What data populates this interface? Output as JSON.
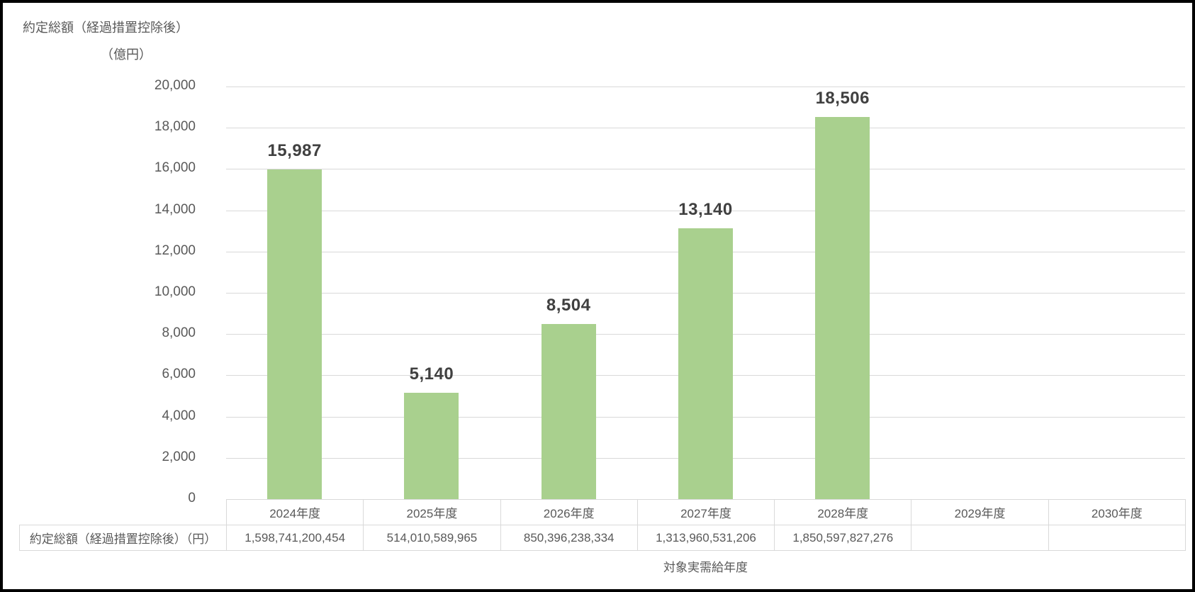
{
  "frame": {
    "border_color": "#000000",
    "background": "#FFFFFF"
  },
  "title": {
    "line1": "約定総額（経過措置控除後）",
    "line2": "（億円）"
  },
  "chart_data": {
    "type": "bar",
    "title": "約定総額（経過措置控除後）（億円）",
    "categories": [
      "2024年度",
      "2025年度",
      "2026年度",
      "2027年度",
      "2028年度",
      "2029年度",
      "2030年度"
    ],
    "values": [
      15987,
      5140,
      8504,
      13140,
      18506,
      null,
      null
    ],
    "bar_labels": [
      "15,987",
      "5,140",
      "8,504",
      "13,140",
      "18,506",
      "",
      ""
    ],
    "xlabel": "対象実需給年度",
    "ylabel_line1": "約定総額（経過措置控除後）",
    "ylabel_line2": "（億円）",
    "ylim": [
      0,
      20000
    ],
    "ytick_values": [
      0,
      2000,
      4000,
      6000,
      8000,
      10000,
      12000,
      14000,
      16000,
      18000,
      20000
    ],
    "ytick_labels": [
      "0",
      "2,000",
      "4,000",
      "6,000",
      "8,000",
      "10,000",
      "12,000",
      "14,000",
      "16,000",
      "18,000",
      "20,000"
    ],
    "grid": true,
    "legend": false,
    "bar_color": "#A9D08E",
    "gridline_color": "#D9D9D9",
    "table": {
      "row_header": "約定総額（経過措置控除後）（円）",
      "values": [
        "1,598,741,200,454",
        "514,010,589,965",
        "850,396,238,334",
        "1,313,960,531,206",
        "1,850,597,827,276",
        "",
        ""
      ]
    }
  }
}
